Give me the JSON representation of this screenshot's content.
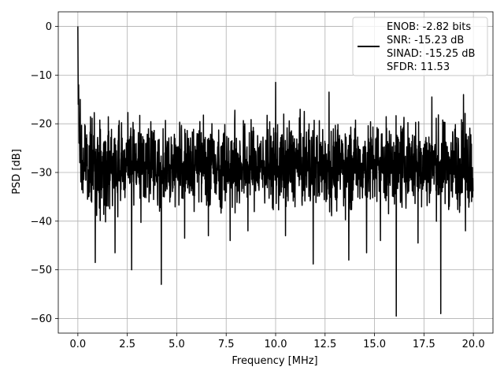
{
  "chart_data": {
    "type": "line",
    "xlabel": "Frequency [MHz]",
    "ylabel": "PSD [dB]",
    "xlim": [
      -0.99,
      20.99
    ],
    "ylim": [
      -63.0,
      3.0
    ],
    "xticks": [
      0.0,
      2.5,
      5.0,
      7.5,
      10.0,
      12.5,
      15.0,
      17.5,
      20.0
    ],
    "xtick_labels": [
      "0.0",
      "2.5",
      "5.0",
      "7.5",
      "10.0",
      "12.5",
      "15.0",
      "17.5",
      "20.0"
    ],
    "yticks": [
      0,
      -10,
      -20,
      -30,
      -40,
      -50,
      -60
    ],
    "ytick_labels": [
      "0",
      "−10",
      "−20",
      "−30",
      "−40",
      "−50",
      "−60"
    ],
    "grid": true,
    "legend_position": "top-right",
    "legend": {
      "lines": [
        "ENOB: -2.82 bits",
        "SNR: -15.23 dB",
        "SINAD: -15.25 dB",
        "SFDR: 11.53"
      ]
    },
    "series": [
      {
        "color": "#000000",
        "x_start": 0.0,
        "x_end": 20.0,
        "n_points": 2000,
        "peak": {
          "x": 0.0,
          "y": 0.0
        },
        "low_freq_values": [
          [
            0.02,
            -16
          ],
          [
            0.04,
            -12
          ],
          [
            0.06,
            -24
          ],
          [
            0.08,
            -20
          ],
          [
            0.1,
            -28
          ],
          [
            0.12,
            -15
          ]
        ],
        "noise_floor_mean": -27.0,
        "noise_upper_envelope": -17.0,
        "noise_lower_envelope": -40.0,
        "notable_dips": [
          {
            "x": 0.88,
            "y": -48.5
          },
          {
            "x": 1.88,
            "y": -46.5
          },
          {
            "x": 2.72,
            "y": -50.0
          },
          {
            "x": 4.22,
            "y": -53.0
          },
          {
            "x": 5.4,
            "y": -43.5
          },
          {
            "x": 6.6,
            "y": -43.0
          },
          {
            "x": 7.7,
            "y": -44.0
          },
          {
            "x": 8.6,
            "y": -42.0
          },
          {
            "x": 10.5,
            "y": -43.0
          },
          {
            "x": 11.9,
            "y": -48.8
          },
          {
            "x": 13.7,
            "y": -48.0
          },
          {
            "x": 14.6,
            "y": -46.5
          },
          {
            "x": 15.3,
            "y": -44.0
          },
          {
            "x": 16.1,
            "y": -59.5
          },
          {
            "x": 17.2,
            "y": -44.5
          },
          {
            "x": 18.35,
            "y": -59.0
          },
          {
            "x": 19.6,
            "y": -42.0
          }
        ],
        "notable_peaks": [
          {
            "x": 10.0,
            "y": -11.5
          },
          {
            "x": 12.7,
            "y": -13.5
          },
          {
            "x": 17.9,
            "y": -14.5
          },
          {
            "x": 19.5,
            "y": -14.0
          }
        ]
      }
    ]
  }
}
